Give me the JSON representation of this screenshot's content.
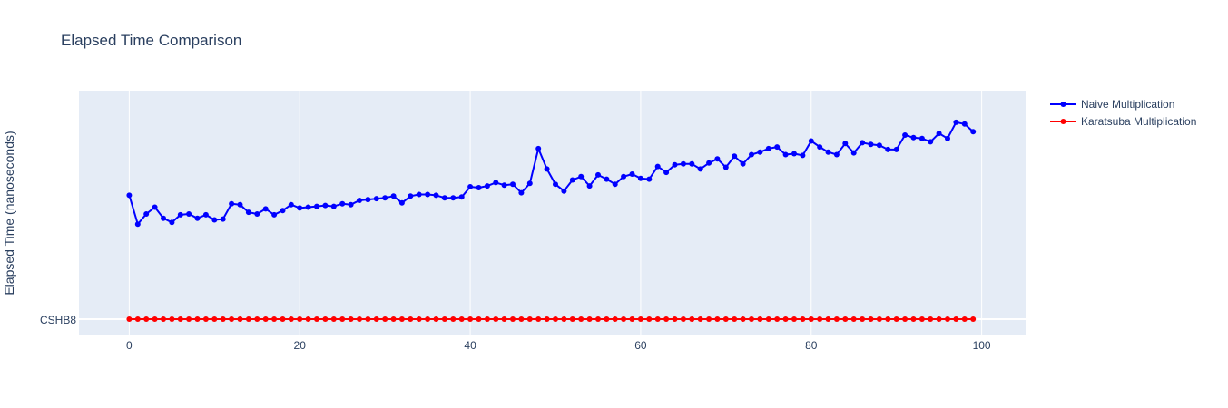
{
  "chart_data": {
    "type": "line",
    "title": "Elapsed Time Comparison",
    "xlabel": "",
    "ylabel": "Elapsed Time (nanoseconds)",
    "xlim": [
      -5,
      105
    ],
    "x_ticks": [
      0,
      20,
      40,
      60,
      80,
      100
    ],
    "y_tick_overlap_text": "CSHB8",
    "grid": true,
    "legend_position": "top-right, outside plot",
    "background_color": "#e5ecf6",
    "x": [
      0,
      1,
      2,
      3,
      4,
      5,
      6,
      7,
      8,
      9,
      10,
      11,
      12,
      13,
      14,
      15,
      16,
      17,
      18,
      19,
      20,
      21,
      22,
      23,
      24,
      25,
      26,
      27,
      28,
      29,
      30,
      31,
      32,
      33,
      34,
      35,
      36,
      37,
      38,
      39,
      40,
      41,
      42,
      43,
      44,
      45,
      46,
      47,
      48,
      49,
      50,
      51,
      52,
      53,
      54,
      55,
      56,
      57,
      58,
      59,
      60,
      61,
      62,
      63,
      64,
      65,
      66,
      67,
      68,
      69,
      70,
      71,
      72,
      73,
      74,
      75,
      76,
      77,
      78,
      79,
      80,
      81,
      82,
      83,
      84,
      85,
      86,
      87,
      88,
      89,
      90,
      91,
      92,
      93,
      94,
      95,
      96,
      97,
      98,
      99
    ],
    "series": [
      {
        "name": "Naive Multiplication",
        "color": "#0000ff",
        "values": [
          146,
          112,
          124,
          132,
          119,
          114,
          123,
          124,
          119,
          123,
          117,
          118,
          136,
          135,
          126,
          124,
          130,
          123,
          128,
          135,
          131,
          132,
          133,
          134,
          133,
          136,
          135,
          140,
          141,
          142,
          143,
          145,
          137,
          145,
          147,
          147,
          146,
          143,
          143,
          144,
          156,
          155,
          157,
          161,
          158,
          159,
          149,
          160,
          201,
          177,
          159,
          151,
          164,
          168,
          157,
          170,
          165,
          159,
          168,
          171,
          166,
          165,
          180,
          173,
          182,
          183,
          183,
          177,
          184,
          189,
          179,
          192,
          183,
          194,
          197,
          201,
          203,
          194,
          195,
          193,
          210,
          203,
          197,
          194,
          207,
          196,
          208,
          206,
          205,
          200,
          200,
          217,
          214,
          213,
          209,
          219,
          213,
          232,
          230,
          221
        ]
      },
      {
        "name": "Karatsuba Multiplication",
        "color": "#ff0000",
        "values": [
          0,
          0,
          0,
          0,
          0,
          0,
          0,
          0,
          0,
          0,
          0,
          0,
          0,
          0,
          0,
          0,
          0,
          0,
          0,
          0,
          0,
          0,
          0,
          0,
          0,
          0,
          0,
          0,
          0,
          0,
          0,
          0,
          0,
          0,
          0,
          0,
          0,
          0,
          0,
          0,
          0,
          0,
          0,
          0,
          0,
          0,
          0,
          0,
          0,
          0,
          0,
          0,
          0,
          0,
          0,
          0,
          0,
          0,
          0,
          0,
          0,
          0,
          0,
          0,
          0,
          0,
          0,
          0,
          0,
          0,
          0,
          0,
          0,
          0,
          0,
          0,
          0,
          0,
          0,
          0,
          0,
          0,
          0,
          0,
          0,
          0,
          0,
          0,
          0,
          0,
          0,
          0,
          0,
          0,
          0,
          0,
          0,
          0,
          0,
          0
        ]
      }
    ]
  }
}
